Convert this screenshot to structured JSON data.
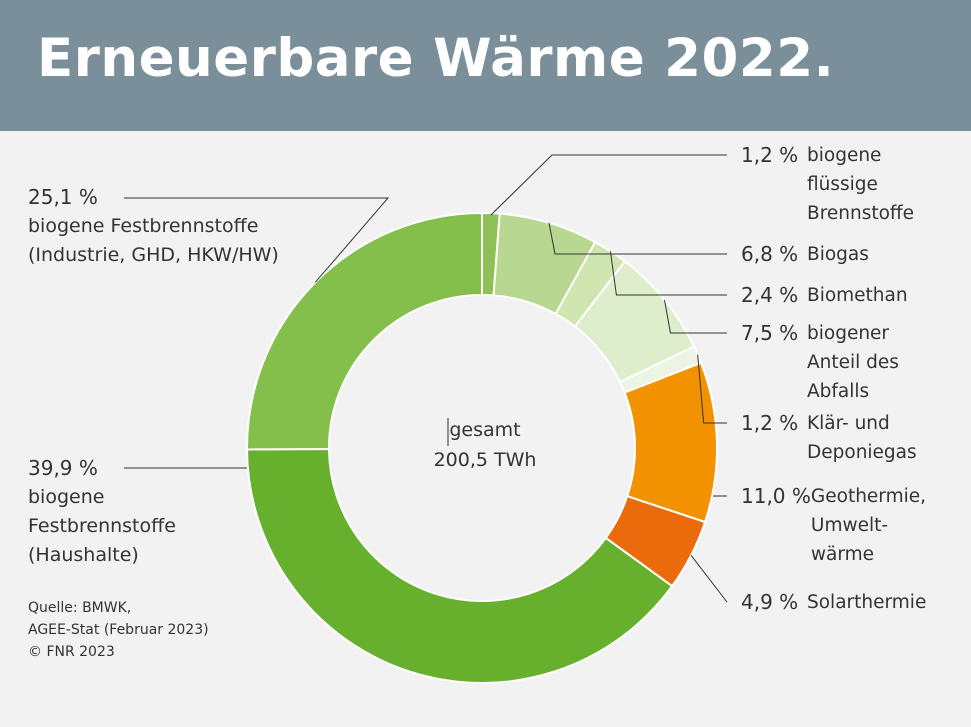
{
  "title": "Erneuerbare Wärme 2022.",
  "center": {
    "line1": "gesamt",
    "line2": "200,5 TWh"
  },
  "source": {
    "line1": "Quelle: BMWK,",
    "line2": "AGEE-Stat (Februar 2023)",
    "line3": "© FNR 2023"
  },
  "chart_data": {
    "type": "pie",
    "style": "donut",
    "total_label": "gesamt 200,5 TWh",
    "slices": [
      {
        "value": 1.2,
        "pct_label": "1,2 %",
        "name_lines": [
          "biogene",
          "flüssige",
          "Brennstoffe"
        ],
        "color": "#8ec057"
      },
      {
        "value": 6.8,
        "pct_label": "6,8 %",
        "name_lines": [
          "Biogas"
        ],
        "color": "#b8d891"
      },
      {
        "value": 2.4,
        "pct_label": "2,4 %",
        "name_lines": [
          "Biomethan"
        ],
        "color": "#cfe6b1"
      },
      {
        "value": 7.5,
        "pct_label": "7,5 %",
        "name_lines": [
          "biogener",
          "Anteil des",
          "Abfalls"
        ],
        "color": "#deedcb"
      },
      {
        "value": 1.2,
        "pct_label": "1,2 %",
        "name_lines": [
          "Klär- und",
          "Deponiegas"
        ],
        "color": "#ecf4e3"
      },
      {
        "value": 11.0,
        "pct_label": "11,0 %",
        "name_lines": [
          "Geothermie,",
          "Umwelt-",
          "wärme"
        ],
        "color": "#f39200"
      },
      {
        "value": 4.9,
        "pct_label": "4,9 %",
        "name_lines": [
          "Solarthermie"
        ],
        "color": "#ea6a0c"
      },
      {
        "value": 39.9,
        "pct_label": "39,9 %",
        "name_lines": [
          "biogene",
          "Festbrennstoffe",
          "(Haushalte)"
        ],
        "color": "#67b02d"
      },
      {
        "value": 25.1,
        "pct_label": "25,1 %",
        "name_lines": [
          "biogene Festbrennstoffe",
          "(Industrie, GHD, HKW/HW)"
        ],
        "color": "#85bf4b"
      }
    ]
  }
}
